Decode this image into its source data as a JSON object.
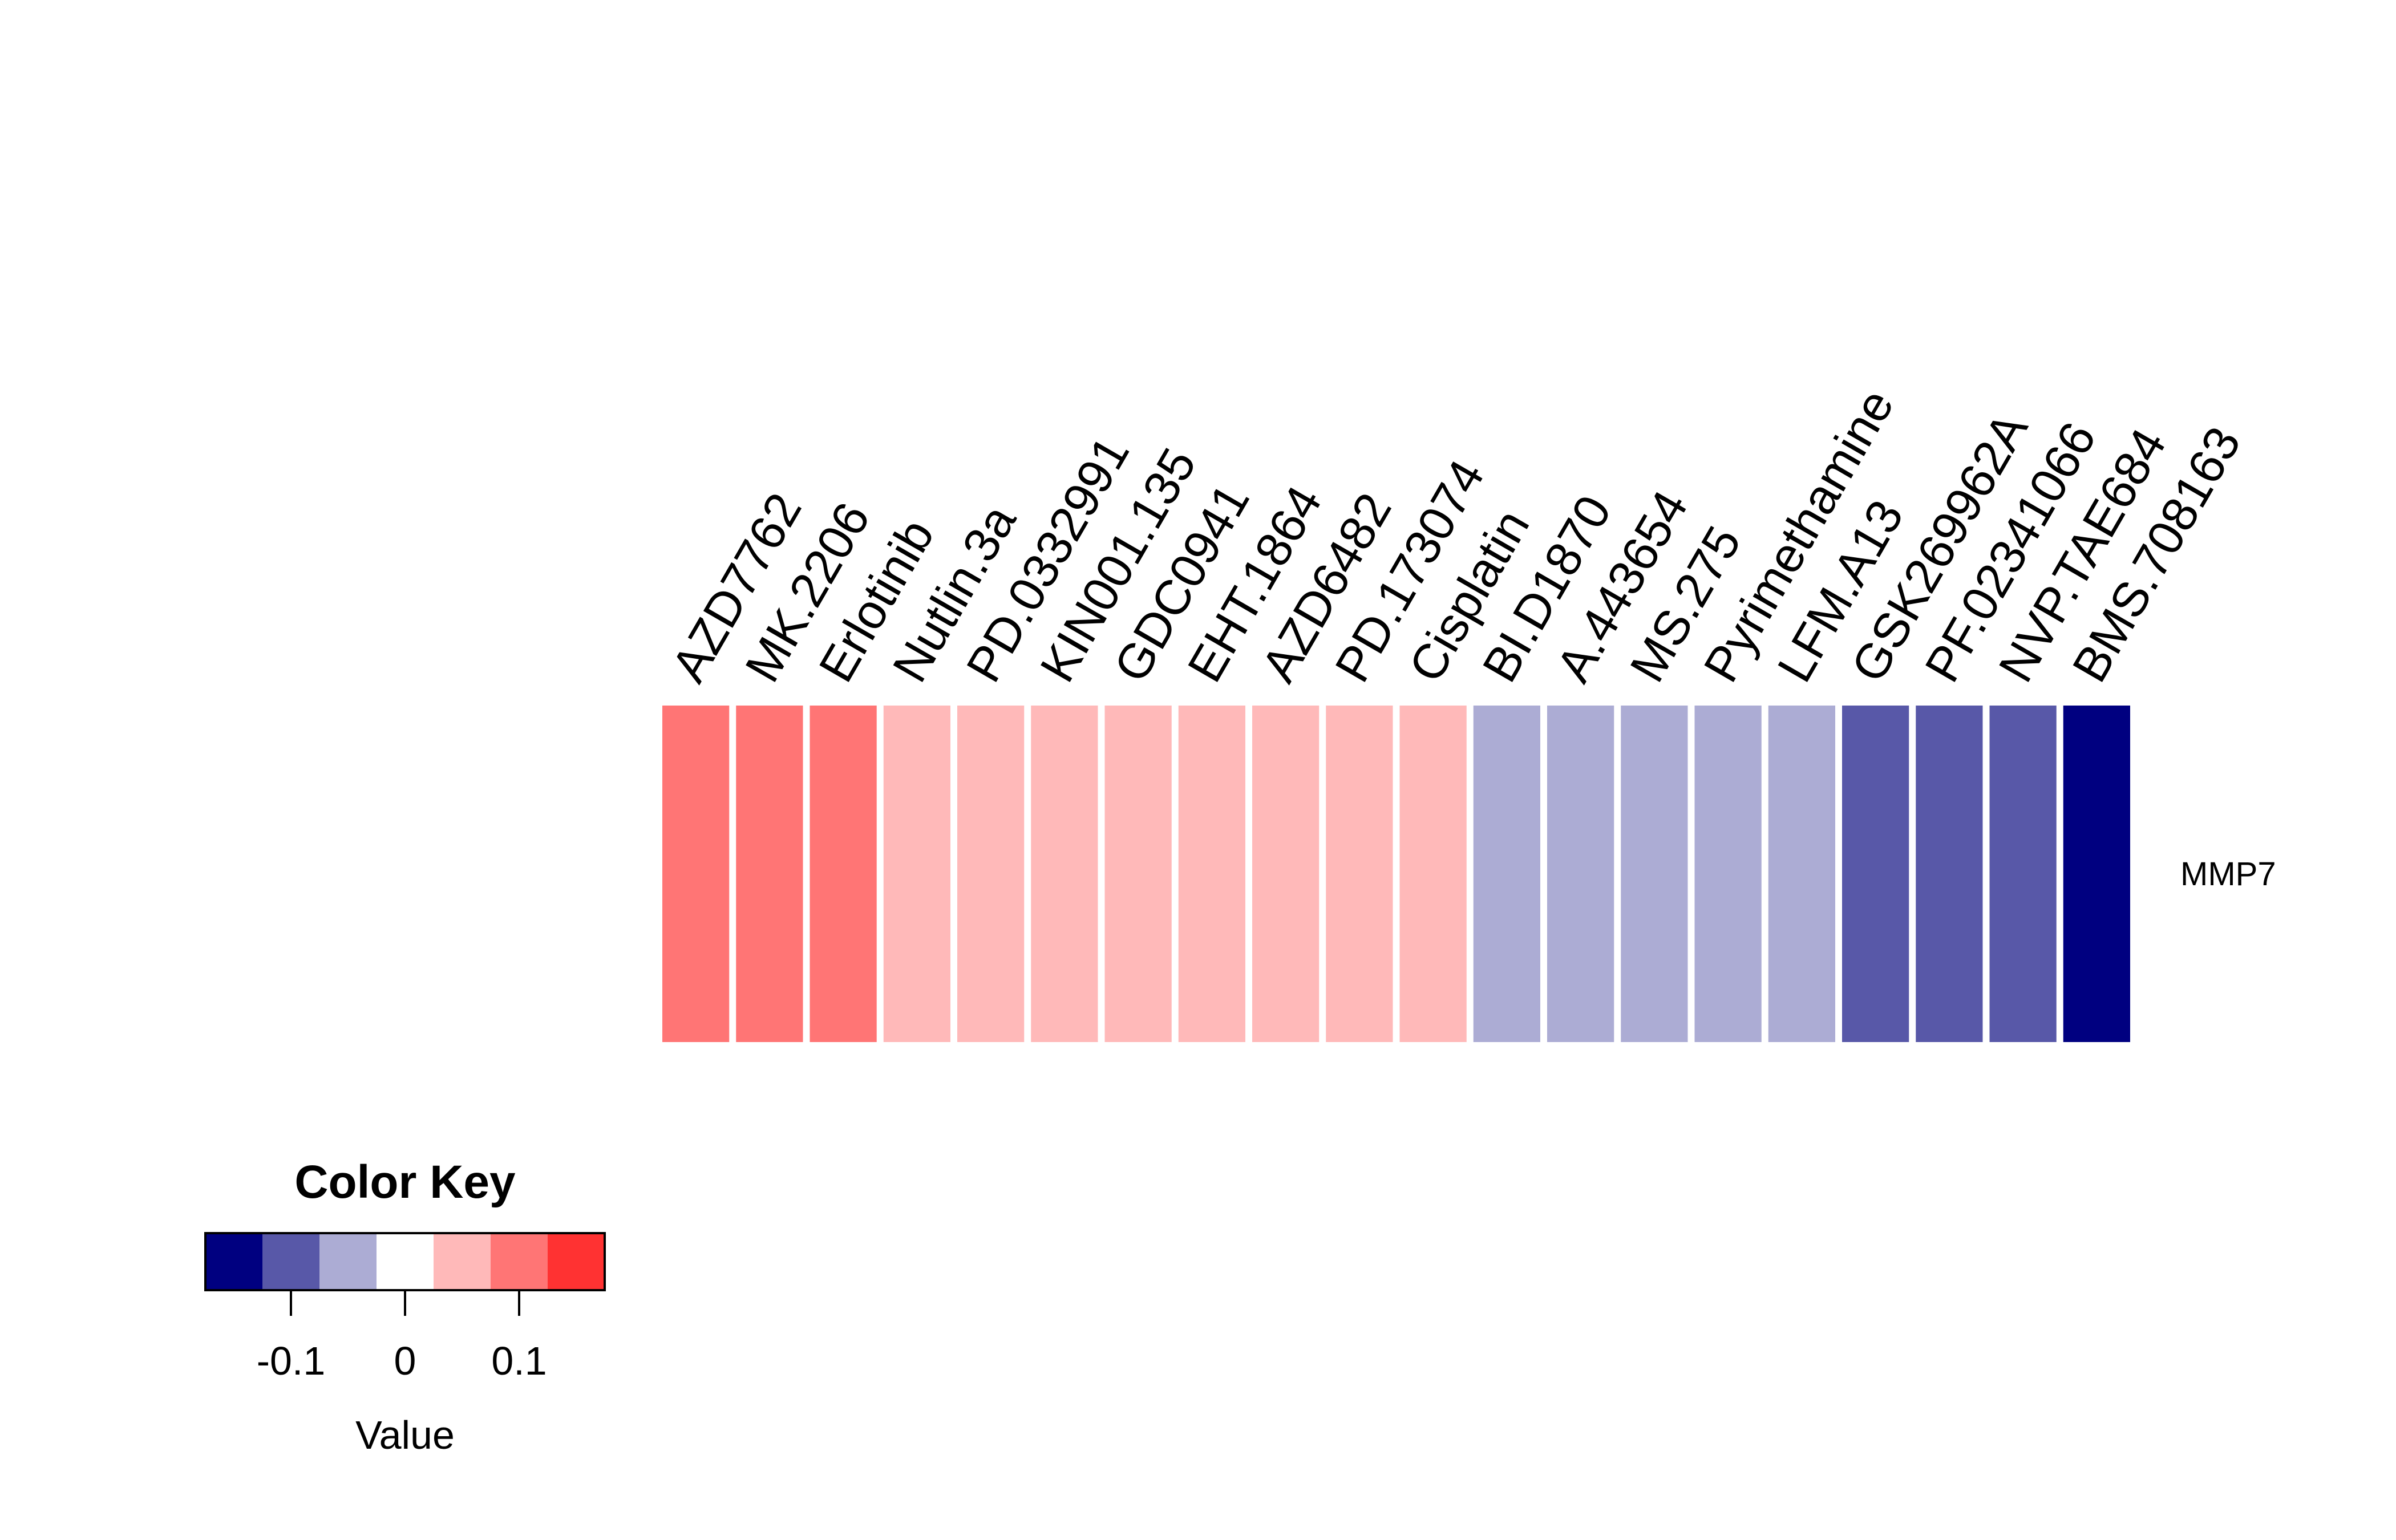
{
  "chart_data": {
    "type": "heatmap",
    "columns": [
      "AZD7762",
      "MK.2206",
      "Erlotinib",
      "Nutlin.3a",
      "PD.0332991",
      "KIN001.135",
      "GDC0941",
      "EHT.1864",
      "AZD6482",
      "PD.173074",
      "Cisplatin",
      "BI.D1870",
      "A.443654",
      "MS.275",
      "Pyrimethamine",
      "LFM.A13",
      "GSK269962A",
      "PF.02341066",
      "NVP.TAE684",
      "BMS.708163"
    ],
    "rows": [
      "MMP7"
    ],
    "values": [
      [
        0.1,
        0.1,
        0.1,
        0.05,
        0.05,
        0.05,
        0.05,
        0.05,
        0.05,
        0.05,
        0.05,
        -0.05,
        -0.05,
        -0.05,
        -0.05,
        -0.05,
        -0.1,
        -0.1,
        -0.1,
        -0.15
      ]
    ],
    "color_key": {
      "title": "Color Key",
      "axis_label": "Value",
      "breaks": [
        -0.175,
        -0.125,
        -0.075,
        -0.025,
        0.025,
        0.075,
        0.125,
        0.175
      ],
      "colors": [
        "#000080",
        "#5858a8",
        "#acacd4",
        "#ffffff",
        "#ffb9b9",
        "#ff7575",
        "#ff3232"
      ],
      "ticks": [
        -0.1,
        0,
        0.1
      ],
      "tick_labels": [
        "-0.1",
        "0",
        "0.1"
      ]
    }
  }
}
